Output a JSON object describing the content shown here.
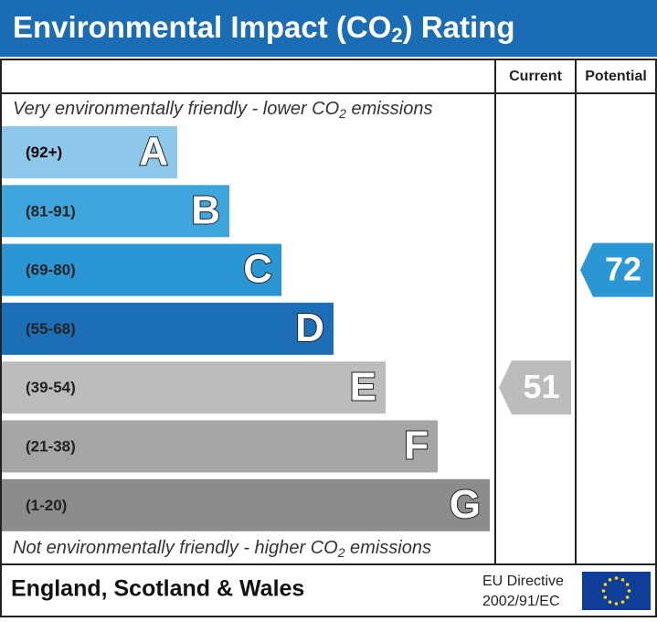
{
  "title": {
    "before": "Environmental Impact (CO",
    "sub": "2",
    "after": ") Rating"
  },
  "columns": {
    "current": "Current",
    "potential": "Potential"
  },
  "top_note": {
    "before": "Very environmentally friendly - lower CO",
    "sub": "2",
    "after": " emissions"
  },
  "bottom_note": {
    "before": "Not environmentally friendly - higher CO",
    "sub": "2",
    "after": " emissions"
  },
  "bands": [
    {
      "range": "(92+)",
      "letter": "A",
      "color": "#8dc8ea"
    },
    {
      "range": "(81-91)",
      "letter": "B",
      "color": "#3ea6dc"
    },
    {
      "range": "(69-80)",
      "letter": "C",
      "color": "#2a96d3"
    },
    {
      "range": "(55-68)",
      "letter": "D",
      "color": "#1c6fb6"
    },
    {
      "range": "(39-54)",
      "letter": "E",
      "color": "#bcbcbc"
    },
    {
      "range": "(21-38)",
      "letter": "F",
      "color": "#a5a5a5"
    },
    {
      "range": "(1-20)",
      "letter": "G",
      "color": "#8c8c8c"
    }
  ],
  "current": 51,
  "potential": 72,
  "footer": {
    "region": "England, Scotland & Wales",
    "directive_line1": "EU Directive",
    "directive_line2": "2002/91/EC"
  }
}
